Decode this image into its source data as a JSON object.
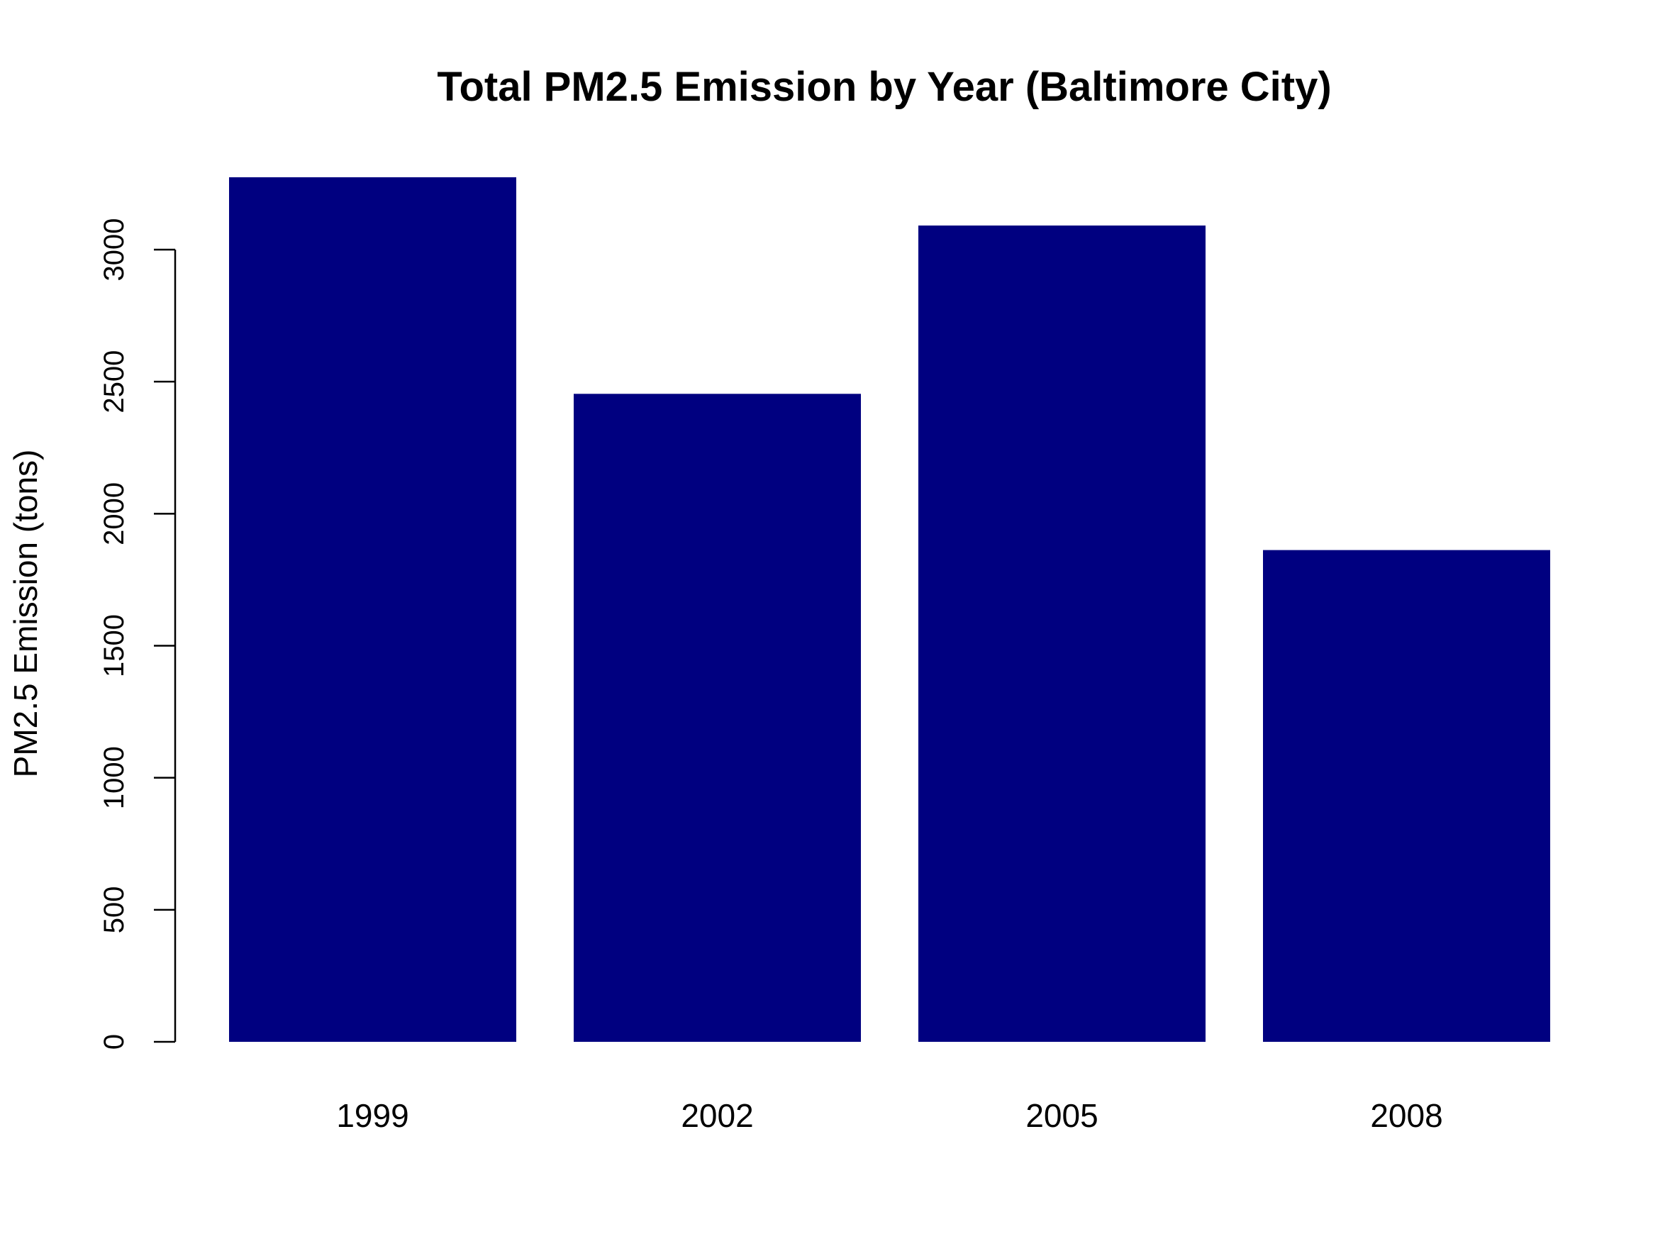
{
  "chart_data": {
    "type": "bar",
    "title": "Total PM2.5 Emission by Year (Baltimore City)",
    "xlabel": "",
    "ylabel": "PM2.5 Emission (tons)",
    "categories": [
      "1999",
      "2002",
      "2005",
      "2008"
    ],
    "values": [
      3274.18,
      2453.92,
      3091.35,
      1862.28
    ],
    "yticks": [
      0,
      500,
      1000,
      1500,
      2000,
      2500,
      3000
    ],
    "ytick_labels": [
      "0",
      "500",
      "1000",
      "1500",
      "2000",
      "2500",
      "3000"
    ],
    "ylim": [
      0,
      3300
    ],
    "grid": false,
    "bar_color": "#000080"
  }
}
